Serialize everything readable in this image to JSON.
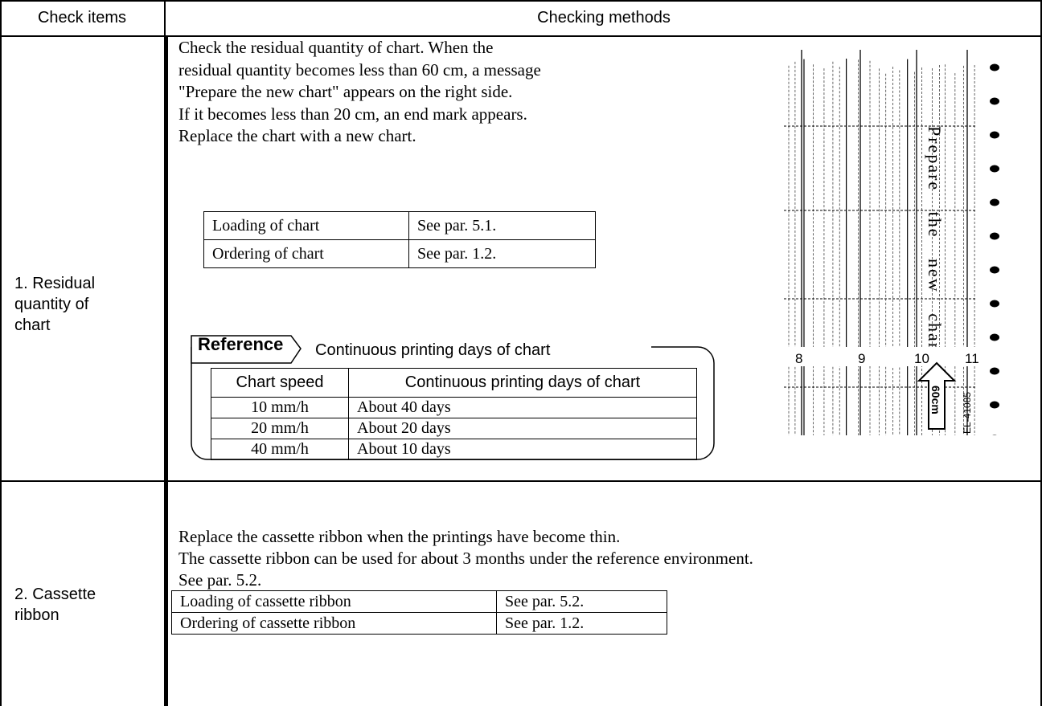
{
  "header": {
    "col1": "Check items",
    "col2": "Checking methods"
  },
  "rows": [
    {
      "item": "1. Residual quantity of chart",
      "lines": [
        "Check the residual quantity of chart. When the",
        "residual quantity becomes less than 60 cm, a message",
        "\"Prepare the new chart\" appears on the right side.",
        "If it becomes less than 20 cm, an end mark appears.",
        "Replace the chart with a new chart."
      ],
      "table": [
        [
          "Loading of chart",
          "See par. 5.1."
        ],
        [
          "Ordering of chart",
          "See par. 1.2."
        ]
      ],
      "reference": {
        "label": "Reference",
        "title": "Continuous printing days of chart",
        "table": {
          "header": [
            "Chart speed",
            "Continuous printing days of chart"
          ],
          "rows": [
            [
              "10 mm/h",
              "About 40 days"
            ],
            [
              "20 mm/h",
              "About 20 days"
            ],
            [
              "40 mm/h",
              "About 10 days"
            ]
          ]
        }
      },
      "figure": {
        "message": "Prepare the new chart.",
        "ticks": [
          "8",
          "9",
          "10",
          "11"
        ],
        "marker": "60cm",
        "code": "EL-41085"
      }
    },
    {
      "item": "2. Cassette ribbon",
      "lines": [
        "Replace the cassette ribbon when the printings have become thin.",
        "The cassette ribbon can be used for about 3 months under the reference environment.",
        "See par. 5.2."
      ],
      "table": [
        [
          "Loading of cassette ribbon",
          "See par. 5.2."
        ],
        [
          "Ordering of cassette ribbon",
          "See par. 1.2."
        ]
      ]
    }
  ]
}
